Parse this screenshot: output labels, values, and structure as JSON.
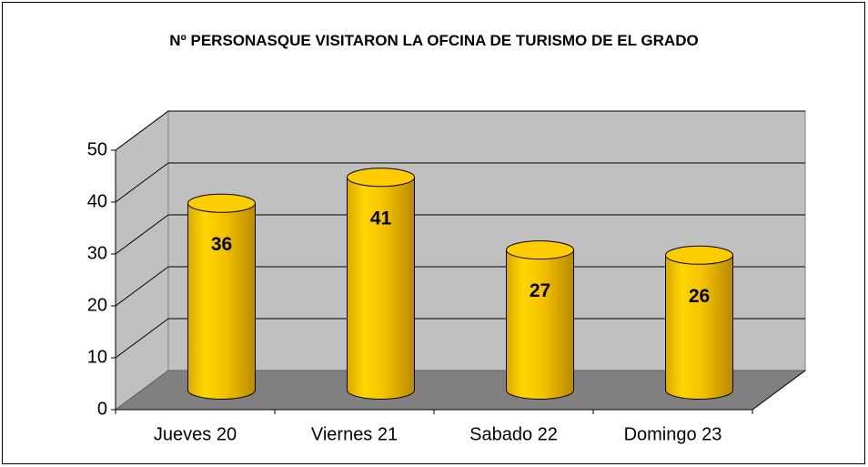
{
  "chart_data": {
    "type": "bar3d",
    "title": "Nº PERSONASQUE VISITARON LA OFCINA DE TURISMO DE EL GRADO",
    "categories": [
      "Jueves 20",
      "Viernes 21",
      "Sabado 22",
      "Domingo 23"
    ],
    "values": [
      36,
      41,
      27,
      26
    ],
    "color": "#ffcc00",
    "ylim": [
      0,
      50
    ],
    "yticks": [
      0,
      10,
      20,
      30,
      40,
      50
    ],
    "grid": true
  }
}
